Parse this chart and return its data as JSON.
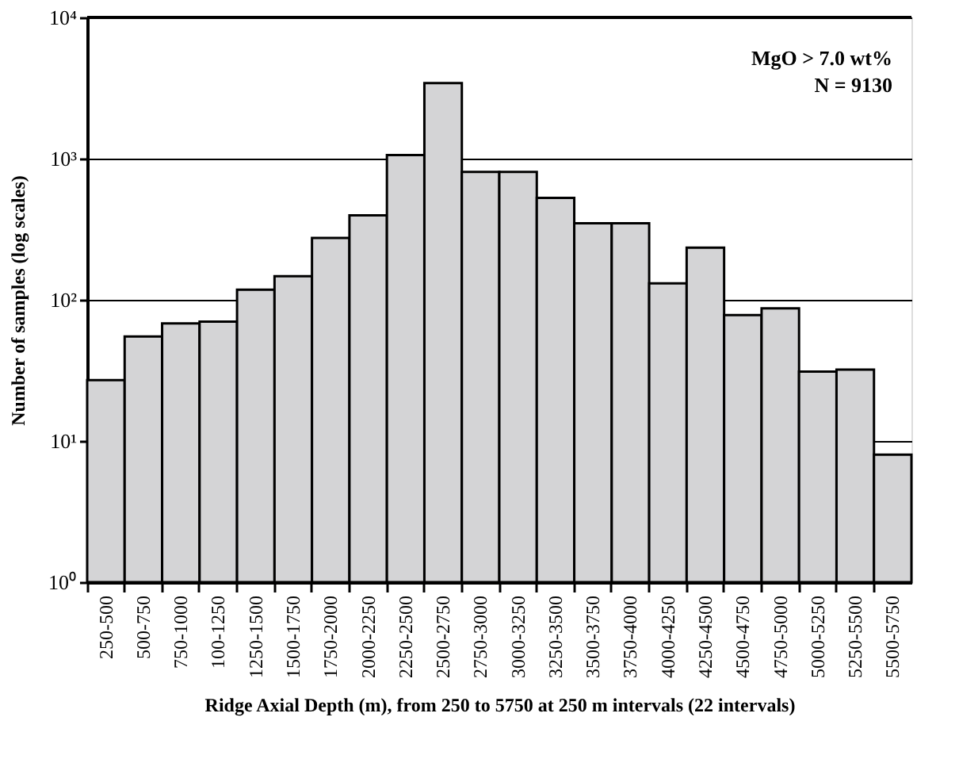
{
  "chart_data": {
    "type": "bar",
    "categories": [
      "250-500",
      "500-750",
      "750-1000",
      "100-1250",
      "1250-1500",
      "1500-1750",
      "1750-2000",
      "2000-2250",
      "2250-2500",
      "2500-2750",
      "2750-3000",
      "3000-3250",
      "3250-3500",
      "3500-3750",
      "3750-4000",
      "4000-4250",
      "4250-4500",
      "4500-4750",
      "4750-5000",
      "5000-5250",
      "5250-5500",
      "5500-5750"
    ],
    "values": [
      27,
      55,
      68,
      70,
      118,
      147,
      274,
      396,
      1060,
      3430,
      805,
      805,
      527,
      348,
      348,
      131,
      234,
      78,
      87,
      31,
      32,
      8
    ],
    "color": "#d4d4d6",
    "xlabel": "Ridge Axial Depth (m), from 250 to 5750 at 250 m intervals (22 intervals)",
    "ylabel": "Number of samples (log scales)",
    "log": true,
    "ylim": [
      1,
      10000
    ],
    "yticks": [
      {
        "value": 1,
        "label": "10⁰"
      },
      {
        "value": 10,
        "label": "10¹"
      },
      {
        "value": 100,
        "label": "10²"
      },
      {
        "value": 1000,
        "label": "10³"
      },
      {
        "value": 10000,
        "label": "10⁴"
      }
    ],
    "grid": "y",
    "annotations": [
      "MgO > 7.0 wt%",
      "N = 9130"
    ]
  }
}
